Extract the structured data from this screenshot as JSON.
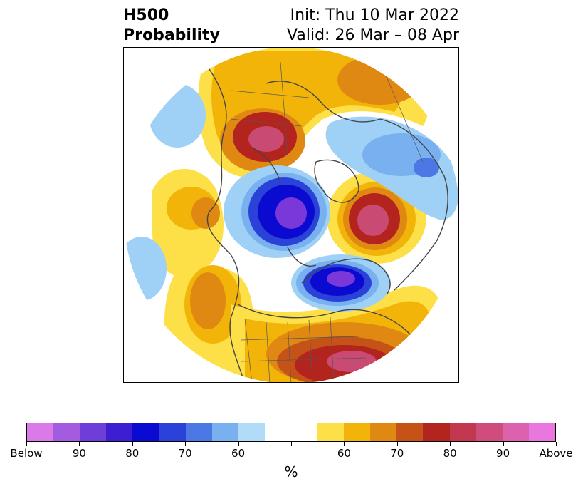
{
  "title": {
    "left_line1": "H500",
    "left_line2": "Probability",
    "right_line1": "Init: Thu 10 Mar 2022",
    "right_line2": "Valid: 26 Mar – 08 Apr"
  },
  "colorbar": {
    "colors": [
      "#d97ae8",
      "#a35be0",
      "#6f3dd8",
      "#3d1ed0",
      "#0a0ad0",
      "#2a42d8",
      "#4c78e6",
      "#78b0f0",
      "#b0dcf8",
      "#ffffff",
      "#ffffff",
      "#fde047",
      "#f3b409",
      "#e08912",
      "#c55318",
      "#b3241f",
      "#c2384f",
      "#cf4d7c",
      "#dd62ae",
      "#e878df"
    ],
    "tick_labels": [
      "Below",
      "90",
      "80",
      "70",
      "60",
      "",
      "60",
      "70",
      "80",
      "90",
      "Above"
    ],
    "unit_label": "%"
  },
  "legend_colors": {
    "below_strong": "#7a38d8",
    "below_mid": "#1e1ec8",
    "below_weak": "#9fd0f6",
    "above_weak": "#f4c316",
    "above_mid": "#d78312",
    "above_strong": "#b3241f",
    "above_peak": "#c94a72"
  }
}
